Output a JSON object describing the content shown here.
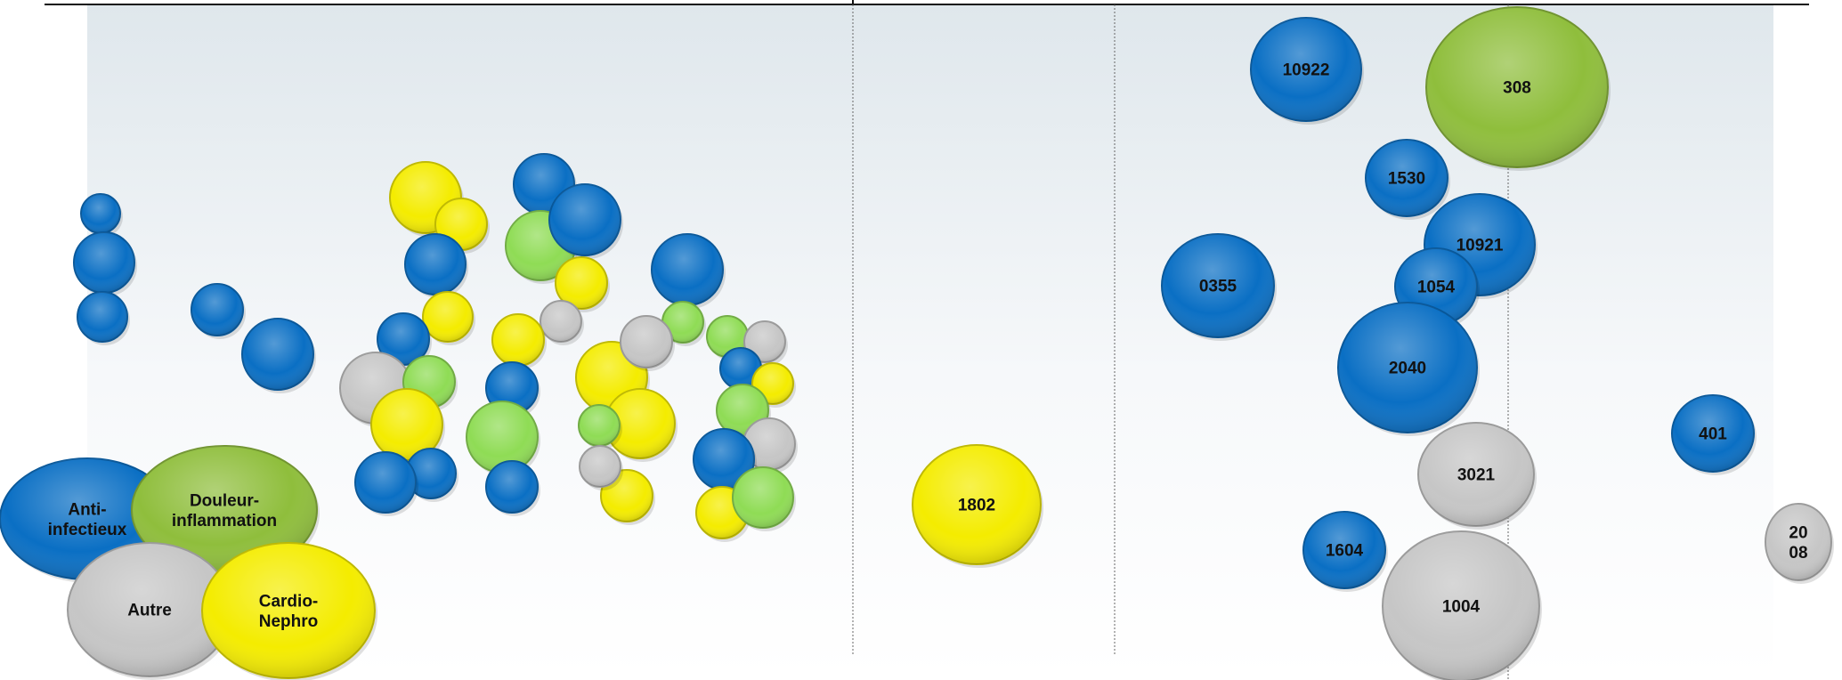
{
  "colors": {
    "anti_infectieux": "#0a6fc4",
    "douleur_inflammation": "#8fbe3c",
    "autre": "#c6c6c6",
    "cardio_nephro": "#f4ec00",
    "bubble_green_light": "#8fdc55"
  },
  "chart_data": {
    "type": "scatter",
    "title": "",
    "xlabel": "",
    "ylabel": "",
    "axis_ticks_shown": false,
    "grid": false,
    "vertical_dividers": 3,
    "legend": {
      "placement": "bottom-left",
      "entries": [
        {
          "key": "anti_infectieux",
          "label_lines": [
            "Anti-",
            "infectieux"
          ]
        },
        {
          "key": "douleur_inflammation",
          "label_lines": [
            "Douleur-",
            "inflammation"
          ]
        },
        {
          "key": "autre",
          "label_lines": [
            "Autre"
          ]
        },
        {
          "key": "cardio_nephro",
          "label_lines": [
            "Cardio-",
            "Nephro"
          ]
        }
      ]
    },
    "labeled_bubbles": [
      {
        "label_lines": [
          "10922"
        ],
        "category": "anti_infectieux"
      },
      {
        "label_lines": [
          "308"
        ],
        "category": "douleur_inflammation"
      },
      {
        "label_lines": [
          "1530"
        ],
        "category": "anti_infectieux"
      },
      {
        "label_lines": [
          "10921"
        ],
        "category": "anti_infectieux"
      },
      {
        "label_lines": [
          "1054"
        ],
        "category": "anti_infectieux"
      },
      {
        "label_lines": [
          "0355"
        ],
        "category": "anti_infectieux"
      },
      {
        "label_lines": [
          "2040"
        ],
        "category": "anti_infectieux"
      },
      {
        "label_lines": [
          "401"
        ],
        "category": "anti_infectieux"
      },
      {
        "label_lines": [
          "3021"
        ],
        "category": "autre"
      },
      {
        "label_lines": [
          "1604"
        ],
        "category": "anti_infectieux"
      },
      {
        "label_lines": [
          "1004"
        ],
        "category": "autre"
      },
      {
        "label_lines": [
          "20",
          "08"
        ],
        "category": "autre"
      },
      {
        "label_lines": [
          "1802"
        ],
        "category": "cardio_nephro"
      }
    ],
    "unlabeled_bubble_counts": {
      "anti_infectieux": 20,
      "douleur_inflammation": 9,
      "autre": 7,
      "cardio_nephro": 13
    }
  }
}
